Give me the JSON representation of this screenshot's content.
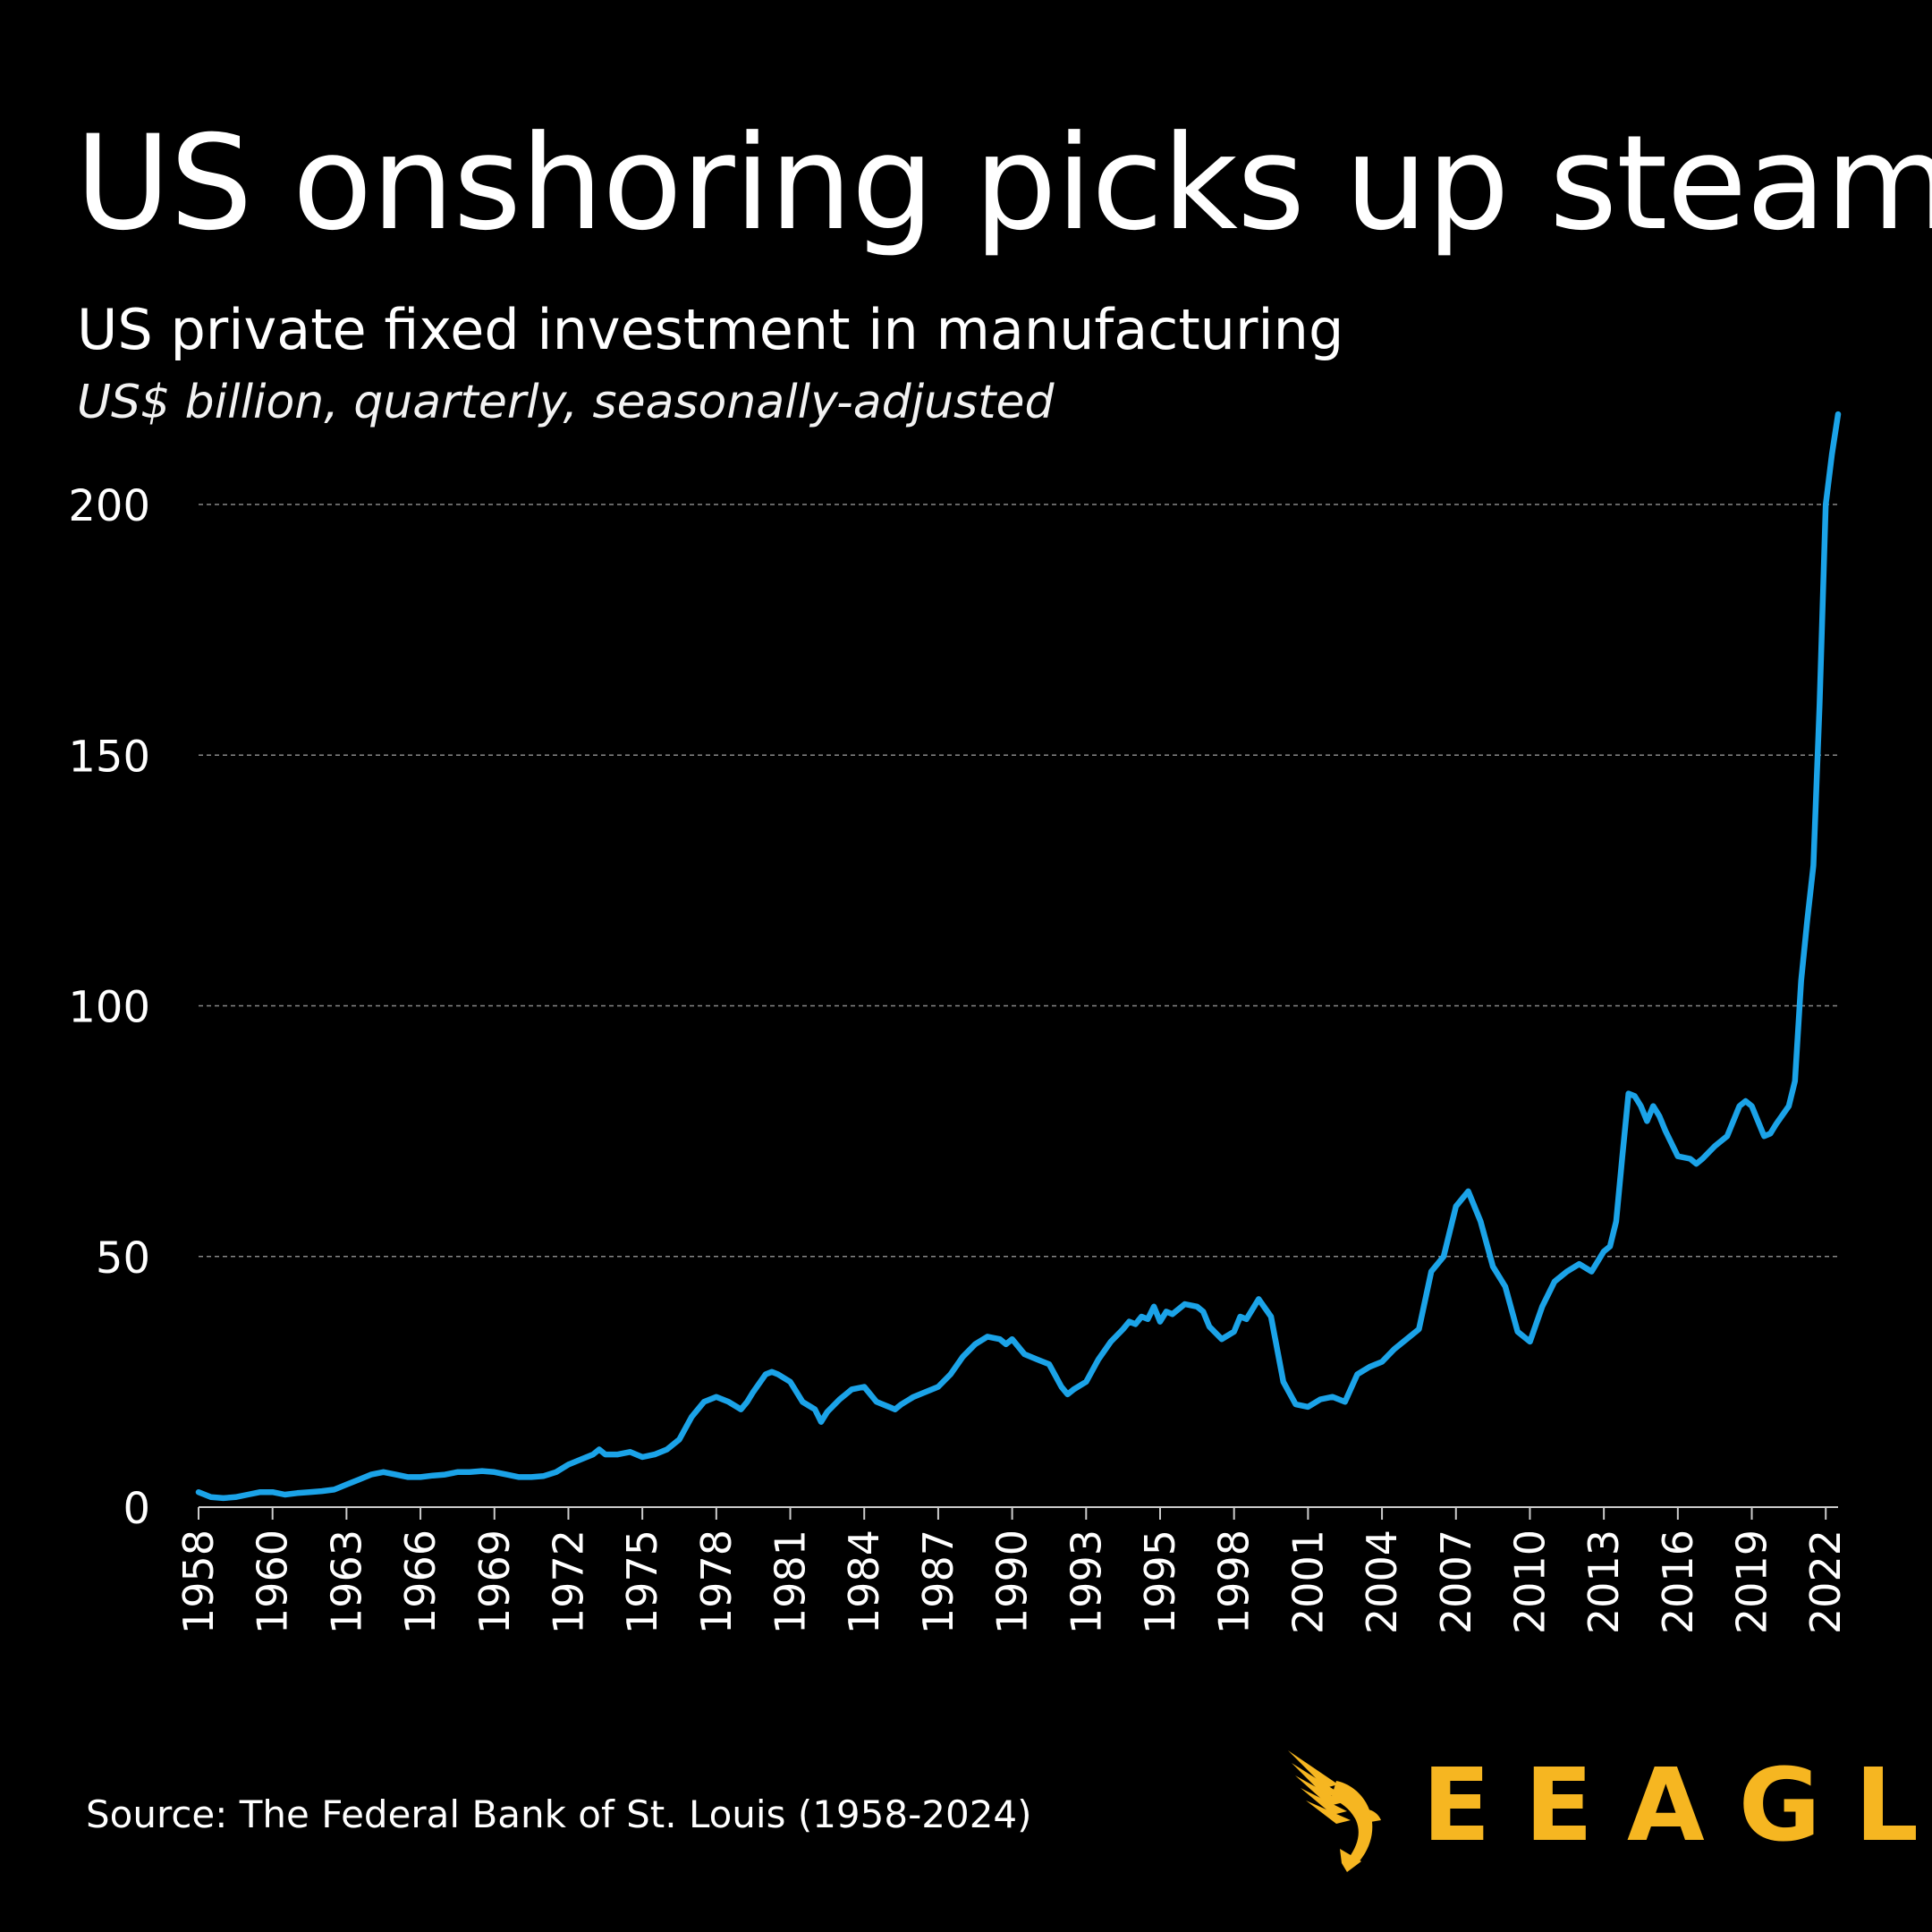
{
  "header": {
    "title": "US onshoring picks up steam",
    "subtitle": "US private fixed investment in manufacturing",
    "units": "US$ billion, quarterly, seasonally-adjusted"
  },
  "footer": {
    "source": "Source: The Federal Bank of St. Louis (1958-2024)",
    "brand": "EEAGLI",
    "brand_icon": "eagle-icon"
  },
  "colors": {
    "background": "#000000",
    "line": "#1ba3e8",
    "brand": "#f6b621",
    "grid": "#888888"
  },
  "chart_data": {
    "type": "line",
    "title": "US onshoring picks up steam",
    "subtitle": "US private fixed investment in manufacturing",
    "ylabel": "US$ billion, quarterly, seasonally-adjusted",
    "xlim": [
      1958,
      2024.5
    ],
    "ylim": [
      0,
      220
    ],
    "yticks": [
      0,
      50,
      100,
      150,
      200
    ],
    "xtick_positions": [
      1958,
      1961,
      1964,
      1967,
      1970,
      1973,
      1976,
      1979,
      1982,
      1985,
      1988,
      1991,
      1994,
      1997,
      2000,
      2003,
      2006,
      2009,
      2012,
      2015,
      2018,
      2021,
      2024
    ],
    "xtick_labels": [
      "1958",
      "1960",
      "1963",
      "1966",
      "1969",
      "1972",
      "1975",
      "1978",
      "1981",
      "1984",
      "1987",
      "1990",
      "1993",
      "1995",
      "1998",
      "2001",
      "2004",
      "2007",
      "2010",
      "2013",
      "2016",
      "2019",
      "2022"
    ],
    "grid": true,
    "series": [
      {
        "name": "US private fixed investment in manufacturing",
        "x": [
          1958,
          1958.5,
          1959,
          1959.5,
          1960,
          1960.5,
          1961,
          1961.5,
          1962,
          1962.5,
          1963,
          1963.5,
          1964,
          1964.5,
          1965,
          1965.5,
          1966,
          1966.5,
          1967,
          1967.5,
          1968,
          1968.5,
          1969,
          1969.5,
          1970,
          1970.5,
          1971,
          1971.5,
          1972,
          1972.5,
          1973,
          1973.5,
          1974,
          1974.25,
          1974.5,
          1975,
          1975.5,
          1976,
          1976.5,
          1977,
          1977.5,
          1978,
          1978.5,
          1979,
          1979.5,
          1980,
          1980.25,
          1980.5,
          1981,
          1981.25,
          1981.5,
          1982,
          1982.5,
          1983,
          1983.25,
          1983.5,
          1984,
          1984.25,
          1984.5,
          1985,
          1985.5,
          1986,
          1986.25,
          1986.5,
          1987,
          1987.5,
          1988,
          1988.5,
          1989,
          1989.5,
          1990,
          1990.5,
          1990.75,
          1991,
          1991.5,
          1992,
          1992.5,
          1993,
          1993.25,
          1993.5,
          1994,
          1994.5,
          1995,
          1995.5,
          1995.75,
          1996,
          1996.25,
          1996.5,
          1996.75,
          1997,
          1997.25,
          1997.5,
          1998,
          1998.5,
          1998.75,
          1999,
          1999.5,
          2000,
          2000.25,
          2000.5,
          2000.75,
          2001,
          2001.5,
          2002,
          2002.5,
          2003,
          2003.5,
          2004,
          2004.5,
          2005,
          2005.5,
          2006,
          2006.5,
          2007,
          2007.5,
          2008,
          2008.5,
          2008.75,
          2009,
          2009.5,
          2010,
          2010.5,
          2011,
          2011.5,
          2012,
          2012.5,
          2013,
          2013.5,
          2014,
          2014.5,
          2015,
          2015.25,
          2015.5,
          2015.75,
          2016,
          2016.25,
          2016.5,
          2016.75,
          2017,
          2017.25,
          2017.5,
          2018,
          2018.5,
          2018.75,
          2019,
          2019.5,
          2020,
          2020.5,
          2020.75,
          2021,
          2021.5,
          2021.75,
          2022,
          2022.5,
          2022.75,
          2023,
          2023.25,
          2023.5,
          2023.75,
          2024,
          2024.25,
          2024.5
        ],
        "values": [
          3,
          2,
          1.8,
          2,
          2.5,
          3,
          3,
          2.5,
          2.8,
          3,
          3.2,
          3.5,
          4.5,
          5.5,
          6.5,
          7,
          6.5,
          6,
          6,
          6.3,
          6.5,
          7,
          7,
          7.2,
          7,
          6.5,
          6,
          6,
          6.2,
          7,
          8.5,
          9.5,
          10.5,
          11.5,
          10.5,
          10.5,
          11,
          10,
          10.5,
          11.5,
          13.5,
          18,
          21,
          22,
          21,
          19.5,
          21,
          23,
          26.5,
          27,
          26.5,
          25,
          21,
          19.5,
          17,
          19,
          21.5,
          22.5,
          23.5,
          24,
          21,
          20,
          19.5,
          20.5,
          22,
          23,
          24,
          26.5,
          30,
          32.5,
          34,
          33.5,
          32.5,
          33.5,
          30.5,
          29.5,
          28.5,
          24,
          22.5,
          23.5,
          25,
          29.5,
          33,
          35.5,
          37,
          36.5,
          38,
          37.5,
          40,
          37,
          39,
          38.5,
          40.5,
          40,
          39,
          36,
          33.5,
          35,
          38,
          37.5,
          39.5,
          41.5,
          38,
          25,
          20.5,
          20,
          21.5,
          22,
          21,
          26.5,
          28,
          29,
          31.5,
          33.5,
          35.5,
          47,
          50,
          55,
          60,
          63,
          57,
          48,
          44,
          35,
          33,
          40,
          45,
          47,
          48.5,
          47,
          51,
          52,
          57,
          70,
          82.5,
          82,
          80,
          77,
          80,
          78,
          75,
          70,
          69.5,
          68.5,
          69.5,
          72,
          74,
          80,
          81,
          80,
          74,
          74.5,
          76.5,
          80,
          85,
          105,
          117,
          128,
          160,
          200,
          210,
          218
        ]
      }
    ]
  }
}
